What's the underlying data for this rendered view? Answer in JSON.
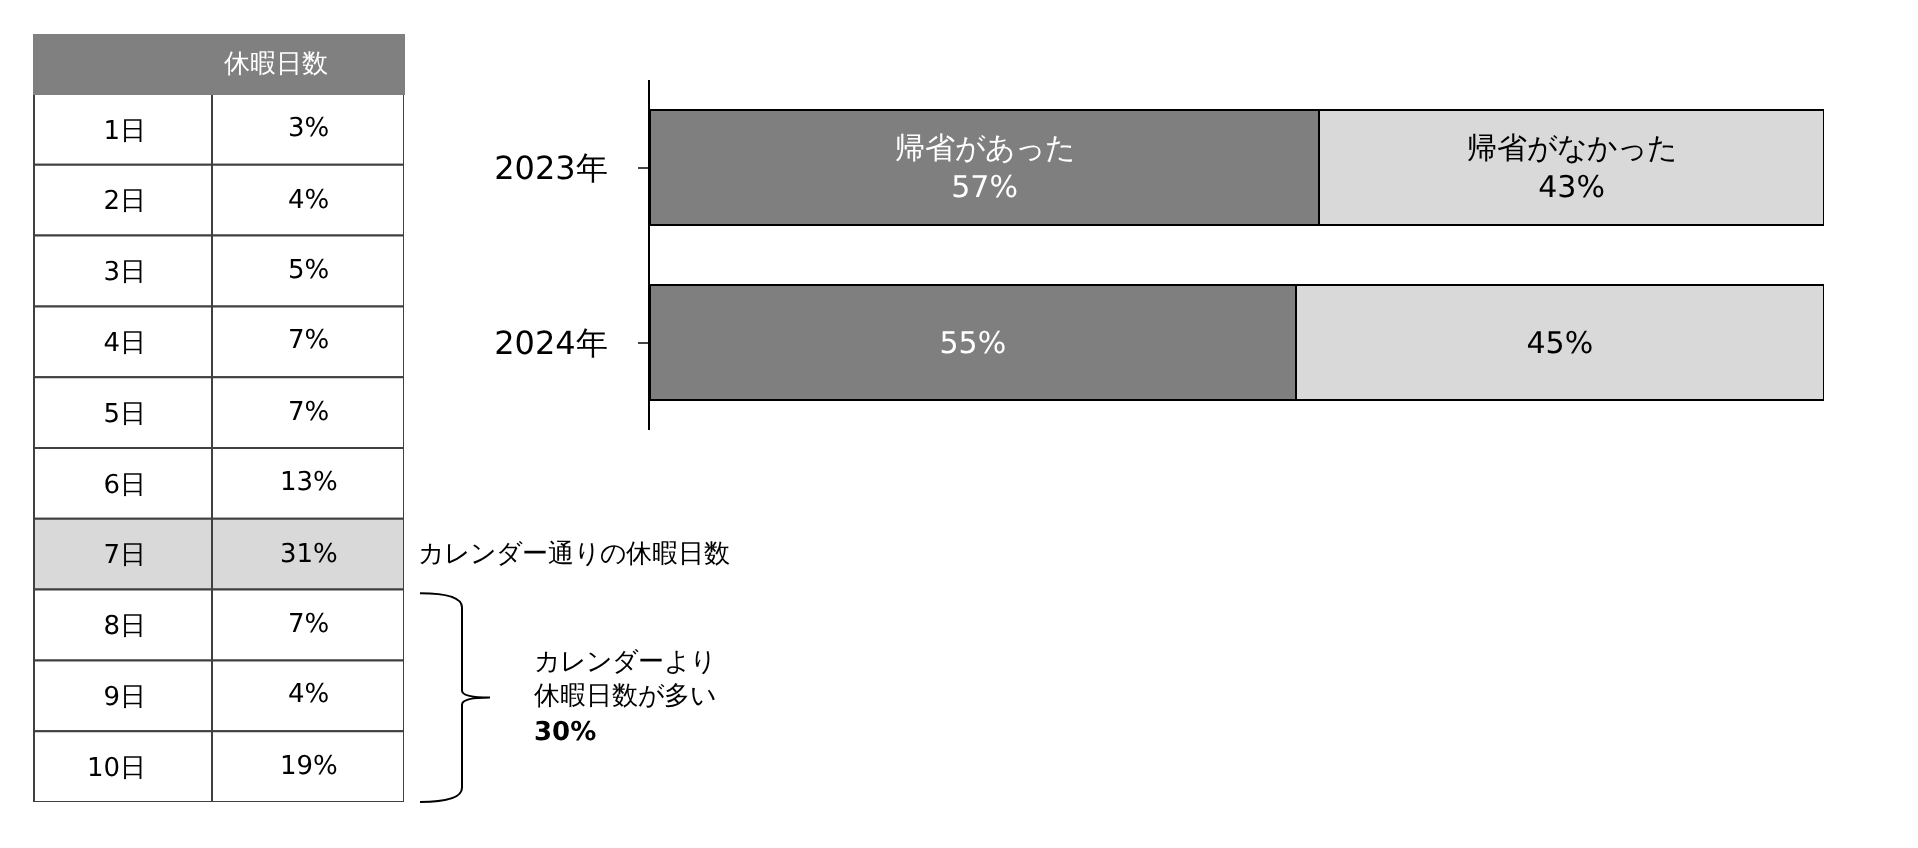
{
  "chart_data": [
    {
      "type": "heatmap",
      "title": "休暇日数",
      "categories": [
        null
      ],
      "y_categories": [
        "1日",
        "2日",
        "3日",
        "4日",
        "5日",
        "6日",
        "7日",
        "8日",
        "9日",
        "10日"
      ],
      "cells": [
        [
          3
        ],
        [
          4
        ],
        [
          5
        ],
        [
          7
        ],
        [
          7
        ],
        [
          13
        ],
        [
          31
        ],
        [
          7
        ],
        [
          4
        ],
        [
          19
        ]
      ],
      "cell_labels": [
        [
          "3%"
        ],
        [
          "4%"
        ],
        [
          "5%"
        ],
        [
          "7%"
        ],
        [
          "7%"
        ],
        [
          "13%"
        ],
        [
          "31%"
        ],
        [
          "7%"
        ],
        [
          "4%"
        ],
        [
          "19%"
        ]
      ],
      "colors": [
        "#ffffff",
        "#ffffff",
        "#ffffff",
        "#ffffff",
        "#ffffff",
        "#ffffff",
        "#d9d9d9",
        "#ffffff",
        "#ffffff",
        "#ffffff"
      ],
      "annotations": [
        "カレンダー通りの休暇日数",
        "カレンダーより",
        "休暇日数が多い",
        "30%"
      ]
    },
    {
      "type": "bar",
      "orientation": "horizontal",
      "stacked": true,
      "categories": [
        "2023年",
        "2024年"
      ],
      "xlim": [
        0,
        100
      ],
      "tick_labels": "y",
      "legend": false,
      "series": [
        {
          "name": "帰省があった",
          "color": "#7f7f7f",
          "values": [
            57,
            55
          ],
          "value_labels": [
            "57%",
            "55%"
          ]
        },
        {
          "name": "帰省がなかった",
          "color": "#d9d9d9",
          "values": [
            43,
            45
          ],
          "value_labels": [
            "43%",
            "45%"
          ]
        }
      ]
    }
  ]
}
